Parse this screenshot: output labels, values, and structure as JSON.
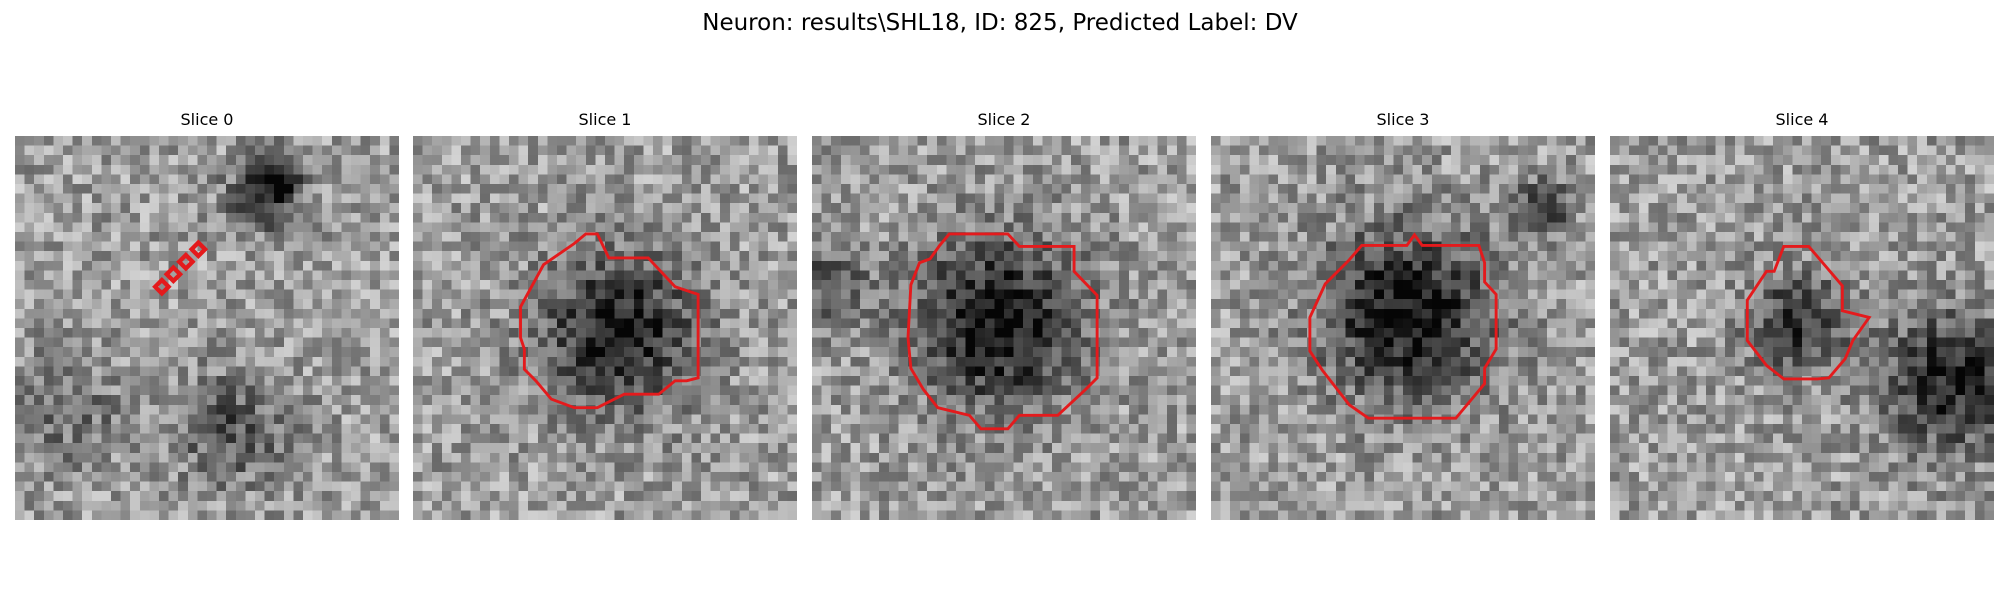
{
  "figure": {
    "title": "Neuron: results\\SHL18, ID: 825, Predicted Label: DV",
    "outline_color": "#e41a1c",
    "colormap": "gray",
    "slices": [
      {
        "title": "Slice 0",
        "seed": 11,
        "dark_patches": [
          [
            25,
            6,
            2.5,
            0.35
          ],
          [
            27,
            4,
            2,
            0.4
          ],
          [
            22,
            30,
            4,
            0.3
          ],
          [
            5,
            28,
            4,
            0.2
          ]
        ],
        "contour_shape": "diamond-chain"
      },
      {
        "title": "Slice 1",
        "seed": 23,
        "dark_patches": [
          [
            21,
            20,
            5.5,
            0.55
          ]
        ],
        "contour_shape": "blob"
      },
      {
        "title": "Slice 2",
        "seed": 37,
        "dark_patches": [
          [
            19,
            19,
            6,
            0.6
          ],
          [
            1,
            15,
            3,
            0.3
          ]
        ],
        "contour_shape": "blob"
      },
      {
        "title": "Slice 3",
        "seed": 51,
        "dark_patches": [
          [
            20,
            18,
            6,
            0.6
          ],
          [
            34,
            7,
            2,
            0.45
          ]
        ],
        "contour_shape": "blob"
      },
      {
        "title": "Slice 4",
        "seed": 67,
        "dark_patches": [
          [
            19,
            19,
            3.5,
            0.45
          ],
          [
            35,
            25,
            5,
            0.5
          ]
        ],
        "contour_shape": "blob"
      }
    ]
  }
}
